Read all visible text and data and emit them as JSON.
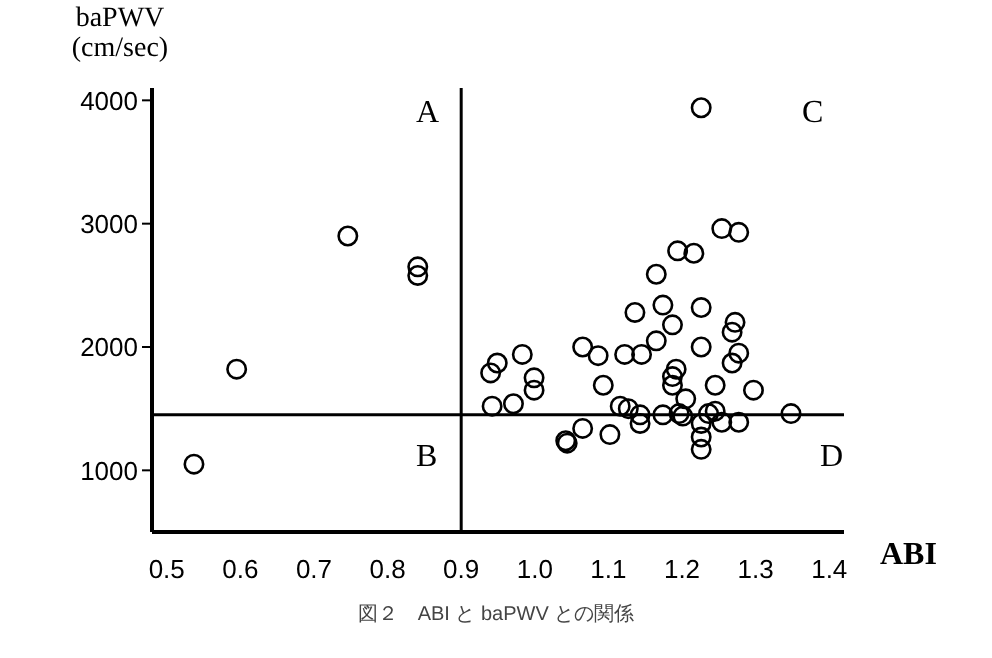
{
  "chart_data": {
    "type": "scatter",
    "xlabel": "ABI",
    "ylabel": "baPWV (cm/sec)",
    "marker": "circle",
    "color": "#000000",
    "grid": false,
    "xlim": [
      0.48,
      1.42
    ],
    "ylim": [
      500,
      4100
    ],
    "xticks": [
      0.5,
      0.6,
      0.7,
      0.8,
      0.9,
      {
        "value": 1,
        "label": "1.0"
      },
      1.1,
      1.2,
      1.3,
      1.4
    ],
    "yticks": [
      1000,
      2000,
      3000,
      4000
    ],
    "ref_lines": [
      {
        "axis": "x",
        "value": 0.9,
        "color": "#000000"
      },
      {
        "axis": "y",
        "value": 1450,
        "color": "#000000"
      }
    ],
    "x": [
      0.537,
      0.595,
      0.746,
      0.841,
      0.841,
      0.949,
      0.94,
      0.983,
      0.999,
      0.999,
      0.942,
      0.971,
      1.042,
      1.226,
      1.254,
      1.277,
      1.194,
      1.216,
      1.165,
      1.136,
      1.174,
      1.226,
      1.187,
      1.272,
      1.268,
      1.065,
      1.086,
      1.122,
      1.145,
      1.165,
      1.226,
      1.277,
      1.268,
      1.192,
      1.187,
      1.187,
      1.093,
      1.245,
      1.297,
      1.205,
      1.116,
      1.143,
      1.174,
      1.196,
      1.236,
      1.348,
      1.044,
      1.065,
      1.102,
      1.143,
      1.254,
      1.277,
      1.226,
      1.226,
      1.226,
      1.201,
      1.127,
      1.245
    ],
    "values": [
      1050,
      1820,
      2900,
      2650,
      2580,
      1870,
      1790,
      1940,
      1750,
      1650,
      1520,
      1540,
      1240,
      3940,
      2960,
      2930,
      2780,
      2760,
      2590,
      2280,
      2340,
      2320,
      2180,
      2200,
      2120,
      2000,
      1930,
      1940,
      1940,
      2050,
      2000,
      1950,
      1870,
      1820,
      1760,
      1690,
      1690,
      1690,
      1650,
      1580,
      1520,
      1450,
      1450,
      1460,
      1460,
      1460,
      1220,
      1340,
      1290,
      1380,
      1390,
      1390,
      1380,
      1270,
      1170,
      1440,
      1500,
      1480
    ],
    "annotations": [
      "A",
      "B",
      "C",
      "D",
      "図２　ABI と baPWV との関係"
    ]
  }
}
